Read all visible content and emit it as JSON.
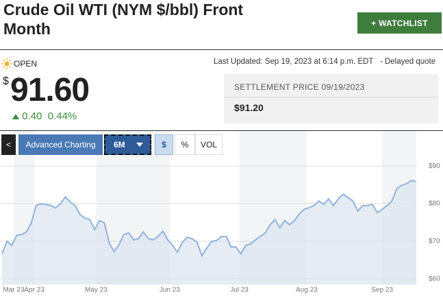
{
  "header": {
    "title": "Crude Oil WTI (NYM $/bbl) Front Month",
    "watchlist_button": "+ WATCHLIST"
  },
  "quote": {
    "status": "OPEN",
    "last_updated": "Last Updated: Sep 19, 2023 at 6:14 p.m. EDT",
    "delayed": "- Delayed quote",
    "currency": "$",
    "price": "91.60",
    "change": "0.40",
    "change_percent": "0.44%",
    "settlement_label": "SETTLEMENT PRICE 09/19/2023",
    "settlement_price": "$91.20"
  },
  "toolbar": {
    "back": "<",
    "advanced": "Advanced Charting",
    "range": "6M",
    "units": [
      "$",
      "%"
    ],
    "vol": "VOL"
  },
  "chart_data": {
    "type": "area",
    "color": "#8fb3dc",
    "fill": "#dde6f0",
    "values": [
      66.7,
      70,
      68.9,
      71.6,
      71.8,
      72.5,
      74.9,
      79.5,
      80,
      79.8,
      79.5,
      78.9,
      80,
      81.8,
      80.4,
      79.5,
      77.1,
      76.2,
      75.8,
      73.1,
      75.5,
      74.9,
      69.5,
      67.3,
      69.1,
      71.8,
      72.2,
      70.4,
      70.7,
      72.5,
      70.7,
      70.4,
      71.3,
      72.7,
      70.4,
      68.9,
      67.1,
      69.8,
      71.1,
      70.7,
      69.8,
      66.2,
      68.2,
      70,
      70.2,
      71.3,
      71.3,
      68.5,
      68.5,
      66.7,
      68.9,
      69.3,
      70.4,
      71.3,
      72.2,
      74.4,
      75.8,
      73.6,
      75.5,
      74.4,
      75.5,
      77.3,
      78.5,
      78.9,
      79.5,
      80.7,
      79.8,
      81.3,
      79.5,
      81.3,
      82.5,
      81.6,
      80.7,
      78,
      79.5,
      79.5,
      79.8,
      77.6,
      78.5,
      79.5,
      80.7,
      84,
      84.9,
      85.3,
      86.2,
      85.8
    ],
    "xlim": [
      0,
      85
    ],
    "xticks": [
      {
        "value": 2.4,
        "label": "Mar 23"
      },
      {
        "value": 6.6,
        "label": "Apr 23"
      },
      {
        "value": 19.3,
        "label": "May 23"
      },
      {
        "value": 34.4,
        "label": "Jun 23"
      },
      {
        "value": 48.7,
        "label": "Jul 23"
      },
      {
        "value": 62.5,
        "label": "Aug 23"
      },
      {
        "value": 78,
        "label": "Sep 23"
      }
    ],
    "ylim": [
      58.5,
      99.5
    ],
    "yticks": [
      {
        "value": 60,
        "label": "$60"
      },
      {
        "value": 70,
        "label": "$70"
      },
      {
        "value": 80,
        "label": "$80"
      },
      {
        "value": 90,
        "label": "$90"
      }
    ],
    "grid": true
  }
}
